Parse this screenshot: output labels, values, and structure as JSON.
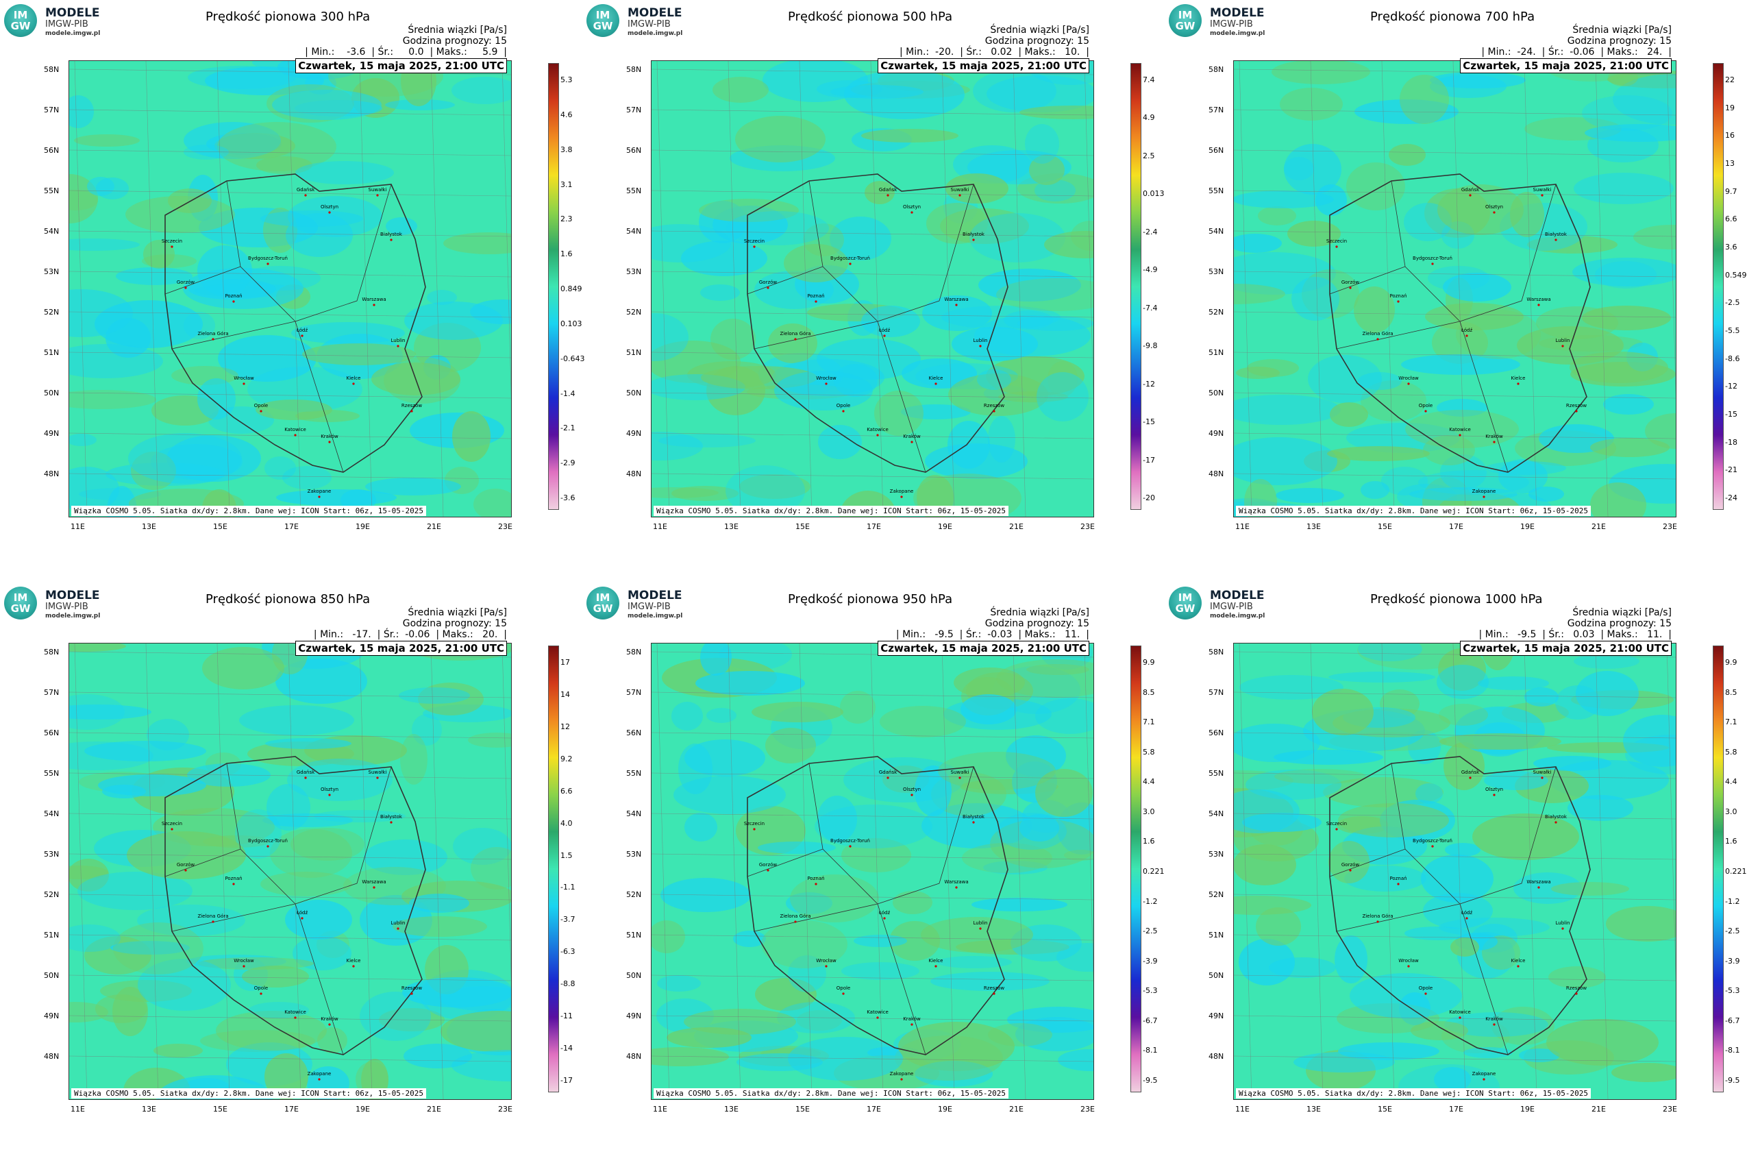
{
  "logo": {
    "mark_top": "IM",
    "mark_bottom": "GW",
    "line1": "MODELE",
    "line2": "IMGW-PIB",
    "line3": "modele.imgw.pl"
  },
  "common": {
    "header_line1": "Średnia wiązki [Pa/s]",
    "header_line2": "Godzina prognozy: 15",
    "date": "Czwartek, 15 maja 2025, 21:00 UTC",
    "footer": "Wiązka COSMO 5.05. Siatka dx/dy: 2.8km. Dane wej: ICON Start: 06z, 15-05-2025",
    "lat_labels": [
      "58N",
      "57N",
      "56N",
      "55N",
      "54N",
      "53N",
      "52N",
      "51N",
      "50N",
      "49N",
      "48N"
    ],
    "lon_labels": [
      "11E",
      "13E",
      "15E",
      "17E",
      "19E",
      "21E",
      "23E"
    ],
    "cities": [
      "Gdańsk",
      "Olsztyn",
      "Suwałki",
      "Szczecin",
      "Białystok",
      "Bydgoszcz-Toruń",
      "Gorzów",
      "Poznań",
      "Warszawa",
      "Zielona Góra",
      "Łódź",
      "Lublin",
      "Wrocław",
      "Kielce",
      "Opole",
      "Rzeszów",
      "Katowice",
      "Kraków",
      "Zakopane"
    ],
    "colors": {
      "base": "#3de6b2",
      "neg": "#1ad4f0",
      "pos": "#6fcf6a",
      "border": "#333333"
    }
  },
  "panels": [
    {
      "title": "Prędkość pionowa 300 hPa",
      "stats": "| Min.:    -3.6  | Śr.:     0.0  | Maks.:     5.9  |",
      "scale": [
        "5.3",
        "4.6",
        "3.8",
        "3.1",
        "2.3",
        "1.6",
        "0.849",
        "0.103",
        "-0.643",
        "-1.4",
        "-2.1",
        "-2.9",
        "-3.6"
      ]
    },
    {
      "title": "Prędkość pionowa 500 hPa",
      "stats": "| Min.:  -20.  | Śr.:   0.02  | Maks.:   10.  |",
      "scale": [
        "7.4",
        "4.9",
        "2.5",
        "0.013",
        "-2.4",
        "-4.9",
        "-7.4",
        "-9.8",
        "-12",
        "-15",
        "-17",
        "-20"
      ]
    },
    {
      "title": "Prędkość pionowa 700 hPa",
      "stats": "| Min.:  -24.  | Śr.:  -0.06  | Maks.:   24.  |",
      "scale": [
        "22",
        "19",
        "16",
        "13",
        "9.7",
        "6.6",
        "3.6",
        "0.549",
        "-2.5",
        "-5.5",
        "-8.6",
        "-12",
        "-15",
        "-18",
        "-21",
        "-24"
      ]
    },
    {
      "title": "Prędkość pionowa 850 hPa",
      "stats": "| Min.:   -17.  | Śr.:  -0.06  | Maks.:   20.  |",
      "scale": [
        "17",
        "14",
        "12",
        "9.2",
        "6.6",
        "4.0",
        "1.5",
        "-1.1",
        "-3.7",
        "-6.3",
        "-8.8",
        "-11",
        "-14",
        "-17"
      ]
    },
    {
      "title": "Prędkość pionowa 950 hPa",
      "stats": "| Min.:   -9.5  | Śr.:  -0.03  | Maks.:   11.  |",
      "scale": [
        "9.9",
        "8.5",
        "7.1",
        "5.8",
        "4.4",
        "3.0",
        "1.6",
        "0.221",
        "-1.2",
        "-2.5",
        "-3.9",
        "-5.3",
        "-6.7",
        "-8.1",
        "-9.5"
      ]
    },
    {
      "title": "Prędkość pionowa 1000 hPa",
      "stats": "| Min.:   -9.5  | Śr.:   0.03  | Maks.:   11.  |",
      "scale": [
        "9.9",
        "8.5",
        "7.1",
        "5.8",
        "4.4",
        "3.0",
        "1.6",
        "0.221",
        "-1.2",
        "-2.5",
        "-3.9",
        "-5.3",
        "-6.7",
        "-8.1",
        "-9.5"
      ]
    }
  ]
}
